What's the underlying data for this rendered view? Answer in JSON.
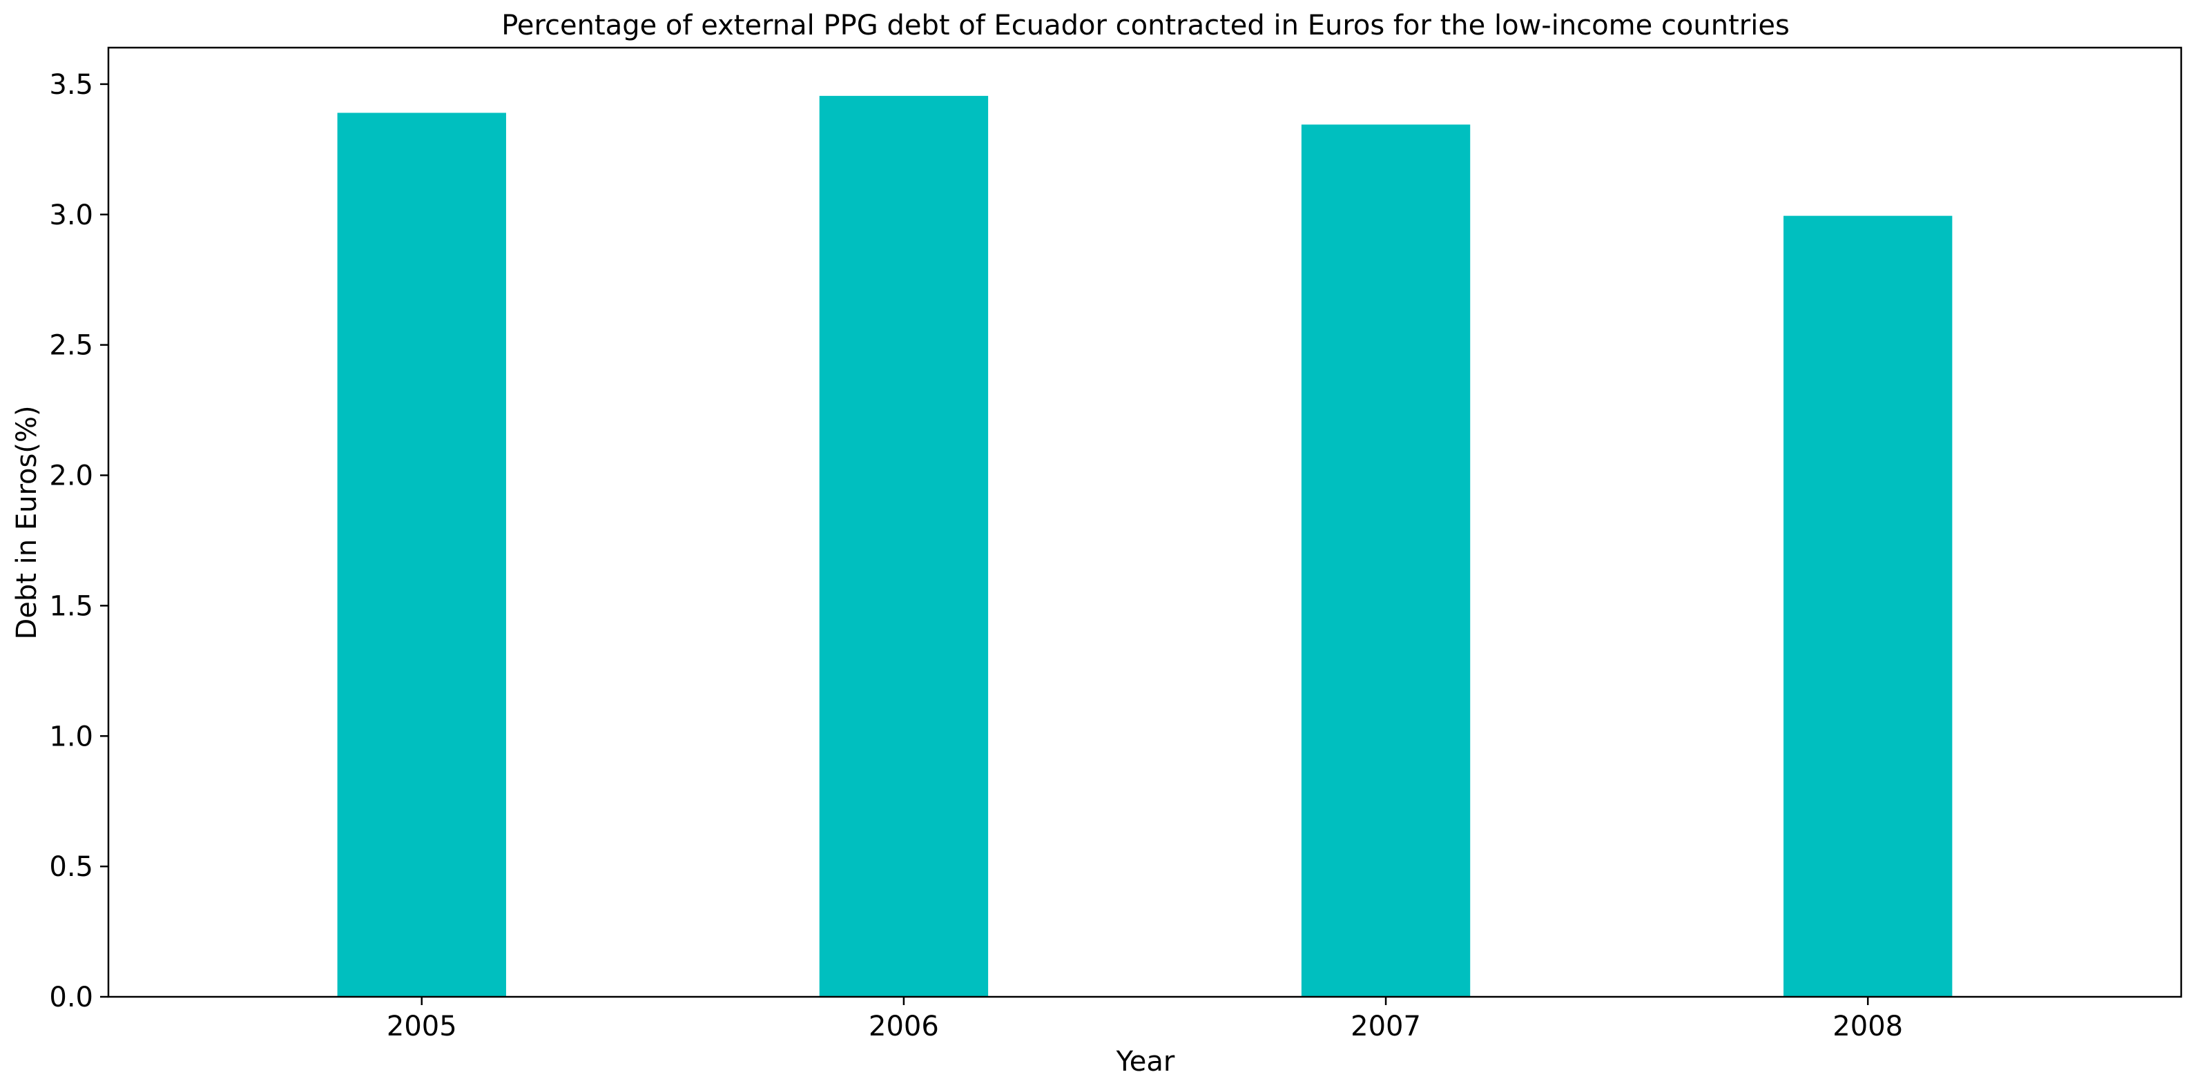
{
  "chart_data": {
    "type": "bar",
    "title": "Percentage of external PPG debt of Ecuador contracted in Euros for the low-income countries",
    "xlabel": "Year",
    "ylabel": "Debt in Euros(%)",
    "categories": [
      "2005",
      "2006",
      "2007",
      "2008"
    ],
    "values": [
      3.39,
      3.455,
      3.345,
      2.995
    ],
    "ylim": [
      0,
      3.64
    ],
    "yticks": [
      0.0,
      0.5,
      1.0,
      1.5,
      2.0,
      2.5,
      3.0,
      3.5
    ],
    "ytick_labels": [
      "0.0",
      "0.5",
      "1.0",
      "1.5",
      "2.0",
      "2.5",
      "3.0",
      "3.5"
    ],
    "grid": false,
    "legend": "none",
    "bar_color": "#00bfbf"
  }
}
